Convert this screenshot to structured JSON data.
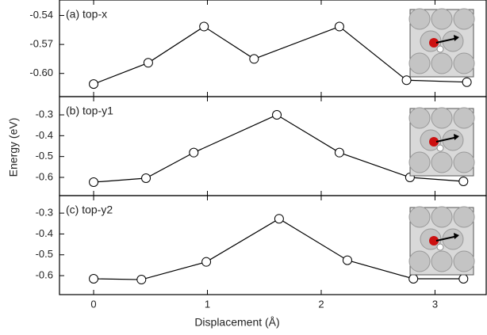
{
  "chart_data": [
    {
      "type": "line",
      "label": "(a) top-x",
      "x": [
        0,
        0.48,
        0.97,
        1.41,
        2.16,
        2.75,
        3.28
      ],
      "values": [
        -0.611,
        -0.589,
        -0.5515,
        -0.585,
        -0.5515,
        -0.607,
        -0.609
      ],
      "color": "#000000",
      "xlim": [
        -0.3,
        3.45
      ],
      "xticks": [
        0,
        1,
        2,
        3
      ],
      "ylim": [
        -0.624,
        -0.524
      ],
      "yticks": [
        -0.54,
        -0.57,
        {
          "value": -0.6,
          "label": "-0.60"
        }
      ]
    },
    {
      "type": "line",
      "label": "(b) top-y1",
      "ylabel": "Energy (eV)",
      "x": [
        0,
        0.46,
        0.88,
        1.61,
        2.16,
        2.78,
        3.25
      ],
      "values": [
        -0.623,
        -0.604,
        -0.481,
        -0.3,
        -0.481,
        -0.6,
        -0.619
      ],
      "color": "#000000",
      "xlim": [
        -0.3,
        3.45
      ],
      "xticks": [
        0,
        1,
        2,
        3
      ],
      "ylim": [
        -0.6875,
        -0.2125
      ],
      "yticks": [
        -0.3,
        -0.4,
        -0.5,
        -0.6
      ]
    },
    {
      "type": "line",
      "label": "(c) top-y2",
      "xlabel": "Displacement (Å)",
      "x": [
        0,
        0.42,
        0.99,
        1.63,
        2.23,
        2.81,
        3.25
      ],
      "values": [
        -0.615,
        -0.619,
        -0.534,
        -0.327,
        -0.526,
        -0.615,
        -0.615
      ],
      "color": "#000000",
      "xlim": [
        -0.3,
        3.45
      ],
      "xticks": [
        0,
        1,
        2,
        3
      ],
      "ylim": [
        -0.691,
        -0.216
      ],
      "yticks": [
        -0.3,
        -0.4,
        -0.5,
        -0.6
      ]
    }
  ]
}
